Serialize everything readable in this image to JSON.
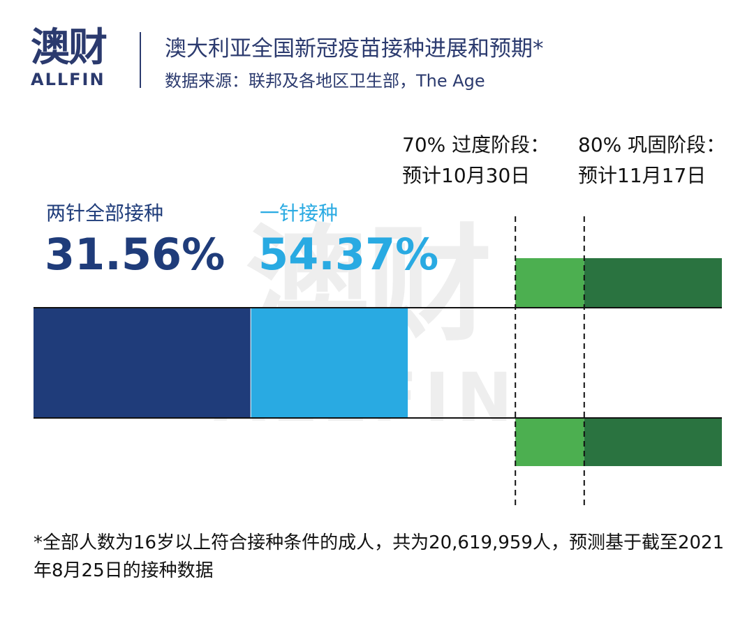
{
  "header": {
    "logo_cn": "澳财",
    "logo_en": "ALLFIN",
    "title": "澳大利亚全国新冠疫苗接种进展和预期*",
    "subtitle": "数据来源：联邦及各地区卫生部，The Age"
  },
  "watermark": {
    "cn": "澳财",
    "en": "ALLFIN"
  },
  "colors": {
    "two_dose": "#1f3c7a",
    "one_dose": "#29aae2",
    "transition": "#4caf50",
    "consolidation": "#2a7340",
    "axis": "#111111",
    "marker": "#111111"
  },
  "chart_data": {
    "type": "bar",
    "orientation": "horizontal-stacked-progress",
    "xlim": [
      0,
      100
    ],
    "series": [
      {
        "name": "两针全部接种",
        "value": 31.56,
        "value_label": "31.56%",
        "color": "#1f3c7a"
      },
      {
        "name": "一针接种",
        "value": 54.37,
        "value_label": "54.37%",
        "color": "#29aae2"
      }
    ],
    "milestones": [
      {
        "value": 70,
        "label_line1": "70% 过度阶段：",
        "label_line2": "预计10月30日",
        "color": "#4caf50"
      },
      {
        "value": 80,
        "label_line1": "80% 巩固阶段：",
        "label_line2": "预计11月17日",
        "color": "#2a7340"
      }
    ]
  },
  "footnote": "*全部人数为16岁以上符合接种条件的成人，共为20,619,959人，预测基于截至2021年8月25日的接种数据"
}
